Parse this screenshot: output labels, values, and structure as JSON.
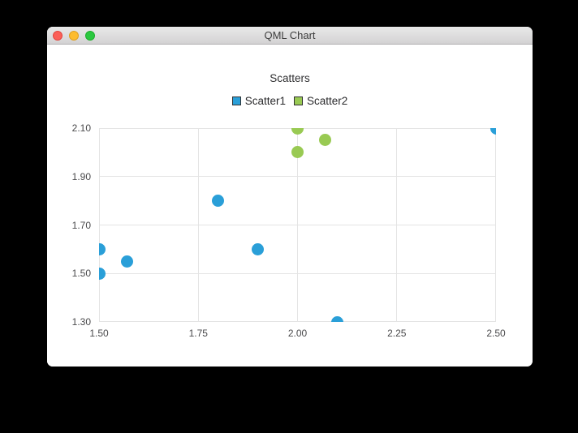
{
  "window": {
    "title": "QML Chart",
    "close_label": "close",
    "minimize_label": "minimize",
    "zoom_label": "zoom"
  },
  "chart_data": {
    "type": "scatter",
    "title": "Scatters",
    "xlabel": "",
    "ylabel": "",
    "xlim": [
      1.5,
      2.5
    ],
    "ylim": [
      1.3,
      2.1
    ],
    "x_ticks": [
      1.5,
      1.75,
      2.0,
      2.25,
      2.5
    ],
    "x_tick_labels": [
      "1.50",
      "1.75",
      "2.00",
      "2.25",
      "2.50"
    ],
    "y_ticks": [
      1.3,
      1.5,
      1.7,
      1.9,
      2.1
    ],
    "y_tick_labels": [
      "1.30",
      "1.50",
      "1.70",
      "1.90",
      "2.10"
    ],
    "grid": true,
    "legend_position": "top",
    "marker_size_px": 15,
    "grid_color": "#e4e4e4",
    "series": [
      {
        "name": "Scatter1",
        "color": "#2a9fd8",
        "points": [
          {
            "x": 1.5,
            "y": 1.5
          },
          {
            "x": 1.5,
            "y": 1.6
          },
          {
            "x": 1.57,
            "y": 1.55
          },
          {
            "x": 1.8,
            "y": 1.8
          },
          {
            "x": 1.9,
            "y": 1.6
          },
          {
            "x": 2.1,
            "y": 1.3
          },
          {
            "x": 2.5,
            "y": 2.1
          }
        ]
      },
      {
        "name": "Scatter2",
        "color": "#99ca53",
        "points": [
          {
            "x": 2.0,
            "y": 2.0
          },
          {
            "x": 2.0,
            "y": 2.1
          },
          {
            "x": 2.07,
            "y": 2.05
          }
        ]
      }
    ]
  }
}
